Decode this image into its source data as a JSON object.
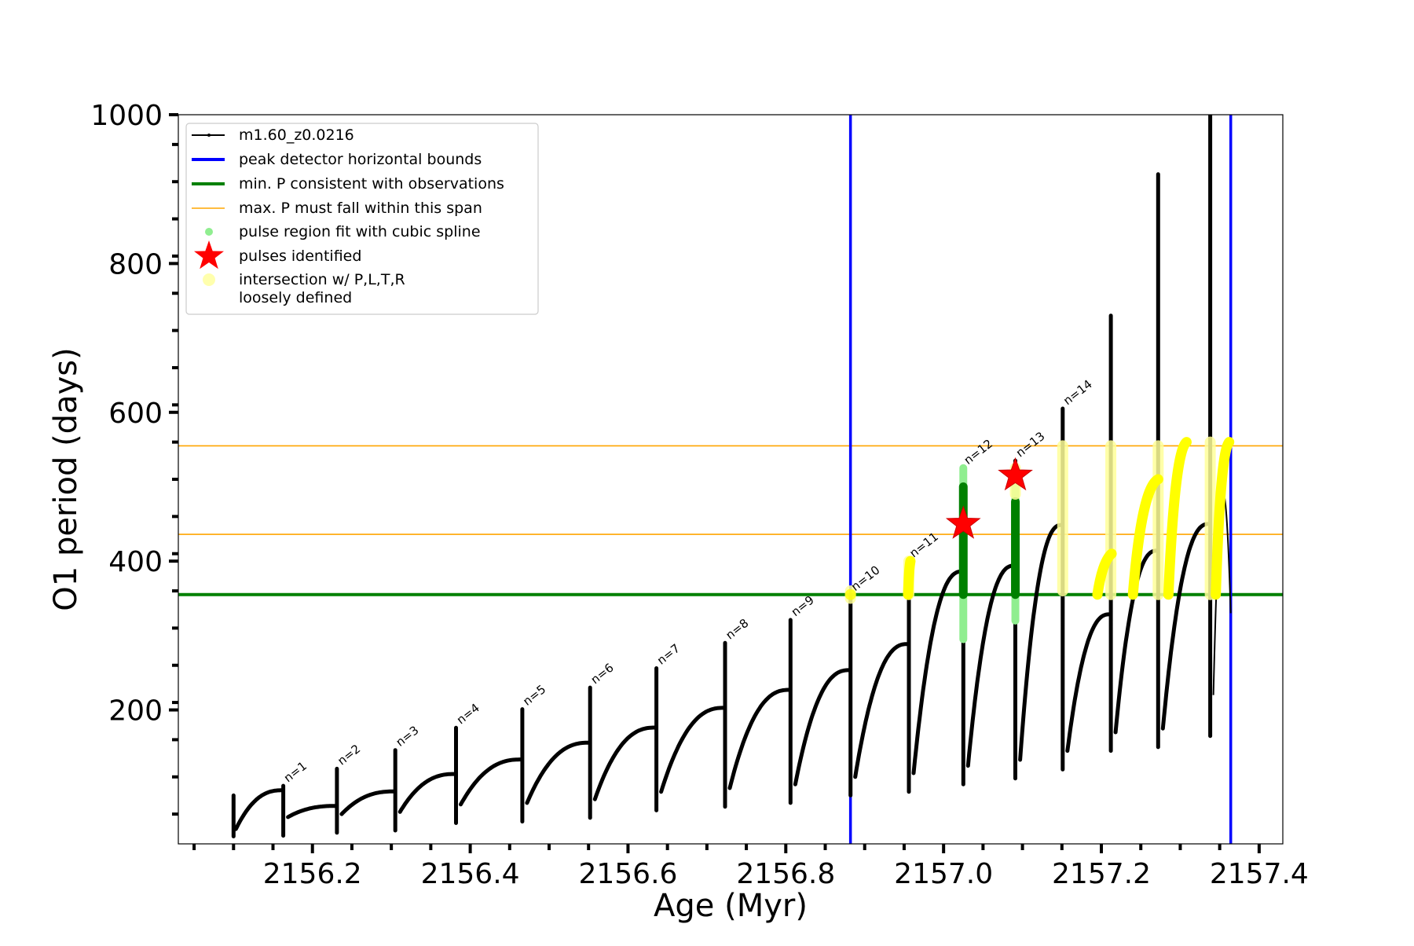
{
  "chart_data": {
    "type": "line",
    "xlabel": "Age (Myr)",
    "ylabel": "O1 period (days)",
    "xlim": [
      2156.03,
      2157.43
    ],
    "ylim": [
      20,
      1000
    ],
    "xticks": [
      2156.2,
      2156.4,
      2156.6,
      2156.8,
      2157.0,
      2157.2,
      2157.4
    ],
    "xtick_labels": [
      "2156.2",
      "2156.4",
      "2156.6",
      "2156.8",
      "2157.0",
      "2157.2",
      "2157.4"
    ],
    "yticks": [
      200,
      400,
      600,
      800,
      1000
    ],
    "ytick_labels": [
      "200",
      "400",
      "600",
      "800",
      "1000"
    ],
    "legend_position": "top-left",
    "legend": [
      {
        "label": "m1.60_z0.0216",
        "marker": "line-dot",
        "color": "#000000"
      },
      {
        "label": "peak detector horizontal bounds",
        "marker": "line",
        "color": "#0000ff"
      },
      {
        "label": "min. P consistent with observations",
        "marker": "line",
        "color": "#008000"
      },
      {
        "label": "max. P must fall within this span",
        "marker": "thin-line",
        "color": "#ffa500"
      },
      {
        "label": "pulse region fit with cubic spline",
        "marker": "dot",
        "color": "#90ee90"
      },
      {
        "label": "pulses identified",
        "marker": "star",
        "color": "#ff0000"
      },
      {
        "label": "intersection w/ P,L,T,R",
        "label2": "loosely defined",
        "marker": "circle",
        "color": "#ffff99"
      }
    ],
    "vertical_lines": {
      "name": "peak detector horizontal bounds",
      "color": "#0000ff",
      "x": [
        2156.882,
        2157.364
      ]
    },
    "min_period_line": {
      "name": "min. P consistent with observations",
      "color": "#008000",
      "y": 355
    },
    "max_period_span": {
      "name": "max. P must fall within this span",
      "color": "#ffa500",
      "y": [
        436,
        555
      ]
    },
    "pulses": [
      {
        "label": "n=1",
        "x": 2156.163,
        "low": 31,
        "high": 98
      },
      {
        "label": "n=2",
        "x": 2156.231,
        "low": 35,
        "high": 121
      },
      {
        "label": "n=3",
        "x": 2156.305,
        "low": 38,
        "high": 146
      },
      {
        "label": "n=4",
        "x": 2156.382,
        "low": 48,
        "high": 176
      },
      {
        "label": "n=5",
        "x": 2156.466,
        "low": 50,
        "high": 201
      },
      {
        "label": "n=6",
        "x": 2156.552,
        "low": 55,
        "high": 230
      },
      {
        "label": "n=7",
        "x": 2156.636,
        "low": 65,
        "high": 256
      },
      {
        "label": "n=8",
        "x": 2156.723,
        "low": 70,
        "high": 290
      },
      {
        "label": "n=9",
        "x": 2156.806,
        "low": 75,
        "high": 321
      },
      {
        "label": "n=10",
        "x": 2156.882,
        "low": 85,
        "high": 355
      },
      {
        "label": "n=11",
        "x": 2156.956,
        "low": 90,
        "high": 400
      },
      {
        "label": "n=12",
        "x": 2157.025,
        "low": 100,
        "high": 525
      },
      {
        "label": "n=13",
        "x": 2157.091,
        "low": 108,
        "high": 535
      },
      {
        "label": "n=14",
        "x": 2157.151,
        "low": 120,
        "high": 605
      }
    ],
    "late_spikes": [
      {
        "x": 2157.212,
        "low": 145,
        "high": 730
      },
      {
        "x": 2157.272,
        "low": 150,
        "high": 920
      },
      {
        "x": 2157.338,
        "low": 165,
        "high": 1000
      }
    ],
    "pulses_identified": [
      {
        "x": 2157.025,
        "y": 450
      },
      {
        "x": 2157.091,
        "y": 515
      }
    ],
    "spline_fit_regions": [
      {
        "x": 2157.025,
        "low": 295,
        "high": 525
      },
      {
        "x": 2157.091,
        "low": 320,
        "high": 505
      }
    ],
    "intersection_regions": [
      {
        "x": 2156.882,
        "low": 350,
        "high": 360
      },
      {
        "x": 2156.956,
        "low": 355,
        "high": 400
      },
      {
        "x": 2157.091,
        "low": 490,
        "high": 525
      },
      {
        "x": 2157.151,
        "low": 360,
        "high": 555
      },
      {
        "x": 2157.212,
        "low": 355,
        "high": 555
      },
      {
        "x": 2157.272,
        "low": 355,
        "high": 555
      },
      {
        "x": 2157.338,
        "low": 355,
        "high": 560
      }
    ],
    "series": [
      {
        "name": "m1.60_z0.0216",
        "color": "#000000"
      }
    ]
  }
}
